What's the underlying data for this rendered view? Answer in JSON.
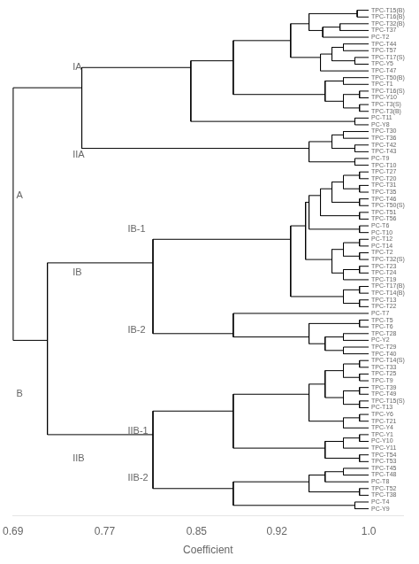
{
  "chart_data": {
    "type": "dendrogram",
    "xlabel": "Coefficient",
    "xlim": [
      0.69,
      1.03
    ],
    "xticks": [
      0.69,
      0.77,
      0.85,
      0.92,
      {
        "value": 1.0,
        "label": "1.0"
      }
    ],
    "grid": false,
    "color": "#000000",
    "leaf_x": 1.0,
    "leaves": [
      "TPC-T15(B)",
      "TPC-T16(B)",
      "TPC-T32(B)",
      "TPC-T37",
      "PC-T2",
      "TPC-T44",
      "TPC-T57",
      "TPC-T17(S)",
      "TPC-Y5",
      "TPC-T47",
      "TPC-T50(B)",
      "TPC-T1",
      "TPC-T16(S)",
      "TPC-Y10",
      "TPC-T3(S)",
      "TPC-T3(B)",
      "PC-T11",
      "PC-Y8",
      "TPC-T30",
      "TPC-T36",
      "TPC-T42",
      "TPC-T43",
      "PC-T9",
      "TPC-T10",
      "TPC-T27",
      "TPC-T20",
      "TPC-T31",
      "TPC-T35",
      "TPC-T46",
      "TPC-T50(S)",
      "TPC-T51",
      "TPC-T56",
      "PC-T6",
      "PC-T10",
      "PC-T12",
      "PC-T14",
      "TPC-T2",
      "TPC-T32(S)",
      "TPC-T23",
      "TPC-T24",
      "TPC-T19",
      "TPC-T17(B)",
      "TPC-T14(B)",
      "TPC-T13",
      "TPC-T22",
      "PC-T7",
      "TPC-T5",
      "TPC-T6",
      "TPC-T28",
      "PC-Y2",
      "TPC-T29",
      "TPC-T40",
      "TPC-T14(S)",
      "TPC-T33",
      "TPC-T25",
      "TPC-T9",
      "TPC-T39",
      "TPC-T49",
      "TPC-T15(S)",
      "PC-T13",
      "TPC-Y6",
      "TPC-T21",
      "TPC-Y4",
      "TPC-Y1",
      "PC-Y10",
      "TPC-Y11",
      "TPC-T54",
      "TPC-T53",
      "TPC-T45",
      "TPC-T48",
      "PC-T8",
      "TPC-T52",
      "TPC-T38",
      "PC-T4",
      "PC-Y9"
    ],
    "tree": {
      "x": 0.69,
      "children": [
        {
          "x": 0.75,
          "children": [
            {
              "x": 0.845,
              "children": [
                {
                  "x": 0.882,
                  "children": [
                    {
                      "x": 0.932,
                      "children": [
                        {
                          "x": 0.948,
                          "children": [
                            {
                              "x": 0.99,
                              "children": [
                                "TPC-T15(B)",
                                "TPC-T16(B)"
                              ]
                            },
                            {
                              "x": 0.96,
                              "children": [
                                {
                                  "x": 0.975,
                                  "children": [
                                    "TPC-T32(B)",
                                    "TPC-T37"
                                  ]
                                },
                                "PC-T2"
                              ]
                            }
                          ]
                        },
                        {
                          "x": 0.958,
                          "children": [
                            {
                              "x": 0.968,
                              "children": [
                                {
                                  "x": 0.978,
                                  "children": [
                                    "TPC-T44",
                                    "TPC-T57"
                                  ]
                                },
                                {
                                  "x": 0.988,
                                  "children": [
                                    "TPC-T17(S)",
                                    "TPC-Y5"
                                  ]
                                }
                              ]
                            },
                            "TPC-T47"
                          ]
                        }
                      ]
                    },
                    {
                      "x": 0.962,
                      "children": [
                        {
                          "x": 0.978,
                          "children": [
                            "TPC-T50(B)",
                            "TPC-T1"
                          ]
                        },
                        {
                          "x": 0.978,
                          "children": [
                            {
                              "x": 0.992,
                              "children": [
                                "TPC-T16(S)",
                                "TPC-Y10"
                              ]
                            },
                            {
                              "x": 0.992,
                              "children": [
                                "TPC-T3(S)",
                                "TPC-T3(B)"
                              ]
                            }
                          ]
                        }
                      ]
                    }
                  ]
                },
                {
                  "x": 0.988,
                  "children": [
                    "PC-T11",
                    "PC-Y8"
                  ]
                }
              ]
            },
            {
              "x": 0.948,
              "children": [
                {
                  "x": 0.968,
                  "children": [
                    {
                      "x": 0.978,
                      "children": [
                        "TPC-T30",
                        "TPC-T36"
                      ]
                    },
                    {
                      "x": 0.988,
                      "children": [
                        "TPC-T42",
                        "TPC-T43"
                      ]
                    }
                  ]
                },
                {
                  "x": 0.988,
                  "children": [
                    "PC-T9",
                    "TPC-T10"
                  ]
                }
              ]
            }
          ]
        },
        {
          "x": 0.72,
          "children": [
            {
              "x": 0.812,
              "children": [
                {
                  "x": 0.932,
                  "children": [
                    {
                      "x": 0.945,
                      "children": [
                        {
                          "x": 0.948,
                          "children": [
                            {
                              "x": 0.958,
                              "children": [
                                {
                                  "x": 0.968,
                                  "children": [
                                    {
                                      "x": 0.978,
                                      "children": [
                                        {
                                          "x": 0.992,
                                          "children": [
                                            "TPC-T27",
                                            "TPC-T20"
                                          ]
                                        },
                                        {
                                          "x": 0.992,
                                          "children": [
                                            "TPC-T31",
                                            "TPC-T35"
                                          ]
                                        }
                                      ]
                                    },
                                    {
                                      "x": 0.992,
                                      "children": [
                                        "TPC-T46",
                                        "TPC-T50(S)"
                                      ]
                                    }
                                  ]
                                },
                                {
                                  "x": 0.992,
                                  "children": [
                                    "TPC-T51",
                                    "TPC-T56"
                                  ]
                                }
                              ]
                            },
                            {
                              "x": 0.992,
                              "children": [
                                "PC-T6",
                                "PC-T10"
                              ]
                            }
                          ]
                        },
                        {
                          "x": 0.968,
                          "children": [
                            {
                              "x": 0.978,
                              "children": [
                                {
                                  "x": 0.992,
                                  "children": [
                                    "PC-T12",
                                    "PC-T14"
                                  ]
                                },
                                {
                                  "x": 0.992,
                                  "children": [
                                    "TPC-T2",
                                    "TPC-T32(S)"
                                  ]
                                }
                              ]
                            },
                            {
                              "x": 0.978,
                              "children": [
                                {
                                  "x": 0.992,
                                  "children": [
                                    "TPC-T23",
                                    "TPC-T24"
                                  ]
                                },
                                "TPC-T19"
                              ]
                            }
                          ]
                        }
                      ]
                    },
                    {
                      "x": 0.978,
                      "children": [
                        {
                          "x": 0.992,
                          "children": [
                            "TPC-T17(B)",
                            "TPC-T14(B)"
                          ]
                        },
                        {
                          "x": 0.992,
                          "children": [
                            "TPC-T13",
                            "TPC-T22"
                          ]
                        }
                      ]
                    }
                  ]
                },
                {
                  "x": 0.882,
                  "children": [
                    "PC-T7",
                    {
                      "x": 0.948,
                      "children": [
                        {
                          "x": 0.992,
                          "children": [
                            "TPC-T5",
                            "TPC-T6"
                          ]
                        },
                        {
                          "x": 0.962,
                          "children": [
                            {
                              "x": 0.978,
                              "children": [
                                "TPC-T28",
                                "PC-Y2"
                              ]
                            },
                            {
                              "x": 0.978,
                              "children": [
                                "TPC-T29",
                                "TPC-T40"
                              ]
                            }
                          ]
                        }
                      ]
                    }
                  ]
                }
              ]
            },
            {
              "x": 0.812,
              "children": [
                {
                  "x": 0.882,
                  "children": [
                    {
                      "x": 0.948,
                      "children": [
                        {
                          "x": 0.962,
                          "children": [
                            {
                              "x": 0.978,
                              "children": [
                                {
                                  "x": 0.992,
                                  "children": [
                                    "TPC-T14(S)",
                                    "TPC-T33"
                                  ]
                                },
                                {
                                  "x": 0.992,
                                  "children": [
                                    "TPC-T25",
                                    "TPC-T9"
                                  ]
                                }
                              ]
                            },
                            {
                              "x": 0.978,
                              "children": [
                                {
                                  "x": 0.992,
                                  "children": [
                                    "TPC-T39",
                                    "TPC-T49"
                                  ]
                                },
                                {
                                  "x": 0.992,
                                  "children": [
                                    "TPC-T15(S)",
                                    "PC-T13"
                                  ]
                                }
                              ]
                            }
                          ]
                        },
                        {
                          "x": 0.978,
                          "children": [
                            {
                              "x": 0.992,
                              "children": [
                                "TPC-Y6",
                                "TPC-T21"
                              ]
                            },
                            "TPC-Y4"
                          ]
                        }
                      ]
                    },
                    {
                      "x": 0.962,
                      "children": [
                        {
                          "x": 0.978,
                          "children": [
                            {
                              "x": 0.992,
                              "children": [
                                "TPC-Y1",
                                "PC-Y10"
                              ]
                            },
                            "TPC-Y11"
                          ]
                        },
                        {
                          "x": 0.992,
                          "children": [
                            "TPC-T54",
                            "TPC-T53"
                          ]
                        }
                      ]
                    }
                  ]
                },
                {
                  "x": 0.882,
                  "children": [
                    {
                      "x": 0.948,
                      "children": [
                        {
                          "x": 0.962,
                          "children": [
                            {
                              "x": 0.978,
                              "children": [
                                "TPC-T45",
                                "TPC-T48"
                              ]
                            },
                            "PC-T8"
                          ]
                        },
                        {
                          "x": 0.992,
                          "children": [
                            "TPC-T52",
                            "TPC-T38"
                          ]
                        }
                      ]
                    },
                    {
                      "x": 0.988,
                      "children": [
                        "PC-T4",
                        "PC-Y9"
                      ]
                    }
                  ]
                }
              ]
            }
          ]
        }
      ]
    },
    "annotations": [
      {
        "text": "A",
        "x": 0.693,
        "y": 27.5
      },
      {
        "text": "IA",
        "x": 0.742,
        "y": 8.5
      },
      {
        "text": "IIA",
        "x": 0.742,
        "y": 21.5
      },
      {
        "text": "B",
        "x": 0.693,
        "y": 57.0
      },
      {
        "text": "IB",
        "x": 0.742,
        "y": 39.0
      },
      {
        "text": "IB-1",
        "x": 0.79,
        "y": 32.5
      },
      {
        "text": "IB-2",
        "x": 0.79,
        "y": 47.5
      },
      {
        "text": "IIB",
        "x": 0.742,
        "y": 66.5
      },
      {
        "text": "IIB-1",
        "x": 0.79,
        "y": 62.5
      },
      {
        "text": "IIB-2",
        "x": 0.79,
        "y": 69.5
      }
    ]
  }
}
